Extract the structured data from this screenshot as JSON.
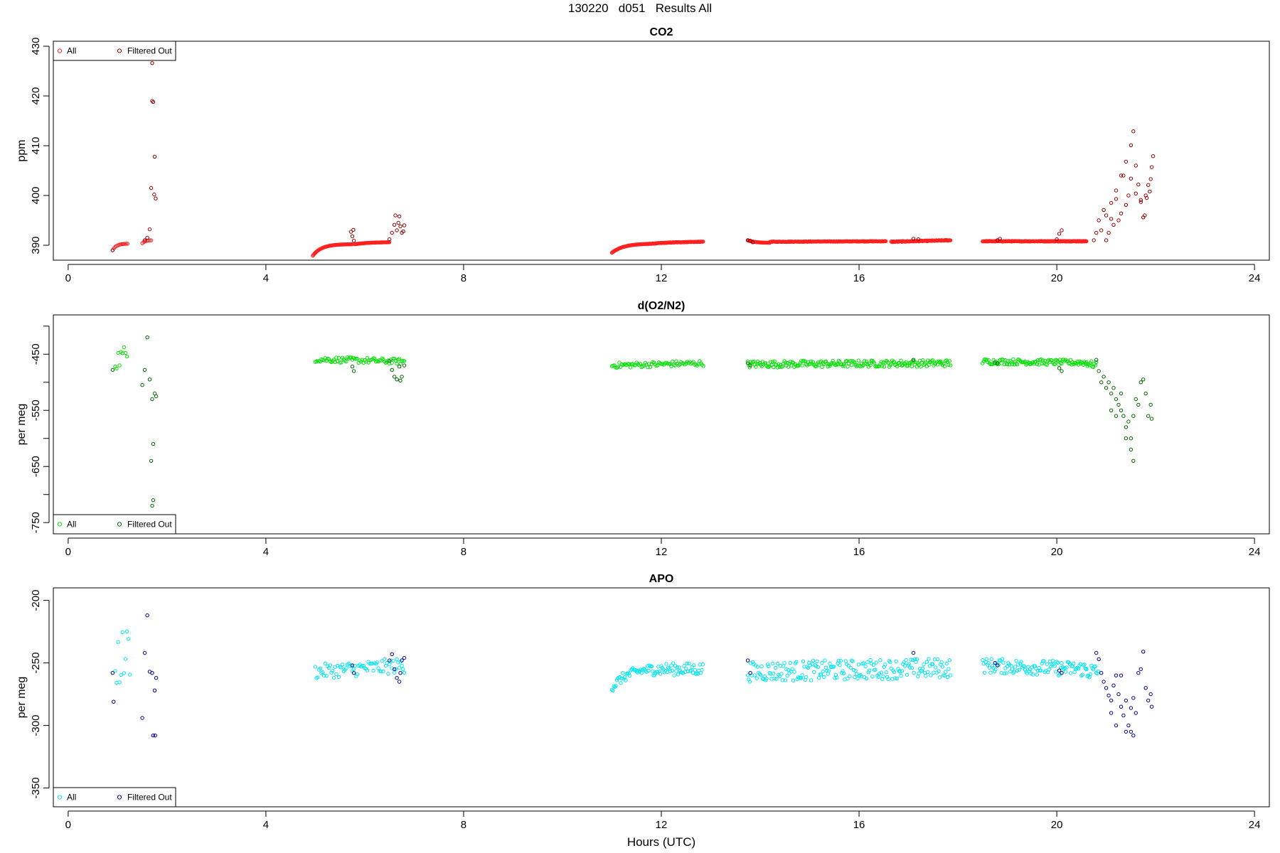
{
  "figure": {
    "title": "130220   d051   Results All",
    "xlabel": "Hours (UTC)"
  },
  "chart_data": [
    {
      "type": "scatter",
      "title": "CO2",
      "xlabel": "",
      "ylabel": "ppm",
      "xlim": [
        -0.3,
        24.3
      ],
      "ylim": [
        387,
        431
      ],
      "xticks": [
        0,
        4,
        8,
        12,
        16,
        20,
        24
      ],
      "xtick_labels": [
        "0",
        "4",
        "8",
        "12",
        "16",
        "20",
        "24"
      ],
      "yticks": [
        390,
        400,
        410,
        420,
        430
      ],
      "ytick_labels": [
        "390",
        "400",
        "410",
        "420",
        "430"
      ],
      "legend": {
        "position": "top-left",
        "entries": [
          "All",
          "Filtered Out"
        ]
      },
      "colors": {
        "all": "#ff2020",
        "filtered": "#8b0000"
      },
      "all_points": {
        "segments": [
          {
            "x0": 0.9,
            "x1": 1.2,
            "step": 0.025,
            "shape": "rise",
            "y0": 389.0,
            "y1": 390.3,
            "k": 0.25,
            "noise": 0.0
          },
          {
            "x0": 1.5,
            "x1": 1.7,
            "step": 0.03,
            "shape": "rise",
            "y0": 390.4,
            "y1": 391.0,
            "k": 0.3,
            "noise": 0.0
          },
          {
            "x0": 4.95,
            "x1": 5.75,
            "step": 0.012,
            "shape": "rise",
            "y0": 387.9,
            "y1": 390.2,
            "k": 0.22,
            "noise": 0.0
          },
          {
            "x0": 5.8,
            "x1": 6.5,
            "step": 0.012,
            "shape": "rise",
            "y0": 390.2,
            "y1": 390.6,
            "k": 0.4,
            "noise": 0.0
          },
          {
            "x0": 11.0,
            "x1": 11.8,
            "step": 0.012,
            "shape": "rise",
            "y0": 388.5,
            "y1": 390.3,
            "k": 0.3,
            "noise": 0.0
          },
          {
            "x0": 11.8,
            "x1": 12.85,
            "step": 0.012,
            "shape": "rise",
            "y0": 390.3,
            "y1": 390.7,
            "k": 0.5,
            "noise": 0.05
          },
          {
            "x0": 13.75,
            "x1": 14.2,
            "step": 0.012,
            "shape": "fall",
            "y0": 391.0,
            "y1": 390.5,
            "k": 0.3,
            "noise": 0.0
          },
          {
            "x0": 14.2,
            "x1": 16.55,
            "step": 0.012,
            "shape": "flat",
            "y0": 390.7,
            "y1": 390.8,
            "k": 0.5,
            "noise": 0.05
          },
          {
            "x0": 16.65,
            "x1": 17.85,
            "step": 0.012,
            "shape": "flat",
            "y0": 390.7,
            "y1": 391.0,
            "k": 0.5,
            "noise": 0.08
          },
          {
            "x0": 18.5,
            "x1": 20.6,
            "step": 0.012,
            "shape": "flat",
            "y0": 390.8,
            "y1": 390.8,
            "k": 0.5,
            "noise": 0.06
          },
          {
            "x0": 20.0,
            "x1": 20.6,
            "step": 0.012,
            "shape": "flat",
            "y0": 390.8,
            "y1": 390.8,
            "k": 0.5,
            "noise": 0.05
          }
        ]
      },
      "filtered_points": [
        [
          0.9,
          389.0
        ],
        [
          1.7,
          426.6
        ],
        [
          1.7,
          419.0
        ],
        [
          1.72,
          418.8
        ],
        [
          1.75,
          407.8
        ],
        [
          1.68,
          401.5
        ],
        [
          1.74,
          400.2
        ],
        [
          1.77,
          399.4
        ],
        [
          1.65,
          393.2
        ],
        [
          1.6,
          391.5
        ],
        [
          1.55,
          391.0
        ],
        [
          5.75,
          391.8
        ],
        [
          5.72,
          392.7
        ],
        [
          5.77,
          393.1
        ],
        [
          5.78,
          390.9
        ],
        [
          6.5,
          391.2
        ],
        [
          6.55,
          392.5
        ],
        [
          6.6,
          394.1
        ],
        [
          6.62,
          396.0
        ],
        [
          6.65,
          393.0
        ],
        [
          6.68,
          394.5
        ],
        [
          6.7,
          395.8
        ],
        [
          6.72,
          393.8
        ],
        [
          6.75,
          392.5
        ],
        [
          6.78,
          392.8
        ],
        [
          6.8,
          394.0
        ],
        [
          13.75,
          391.0
        ],
        [
          13.8,
          390.9
        ],
        [
          13.85,
          390.6
        ],
        [
          17.1,
          391.3
        ],
        [
          17.2,
          391.2
        ],
        [
          18.8,
          391.0
        ],
        [
          18.85,
          391.3
        ],
        [
          20.0,
          391.2
        ],
        [
          20.05,
          392.3
        ],
        [
          20.1,
          393.0
        ],
        [
          20.75,
          391.0
        ],
        [
          20.8,
          392.5
        ],
        [
          20.85,
          395.0
        ],
        [
          20.9,
          393.0
        ],
        [
          20.95,
          397.1
        ],
        [
          21.0,
          391.0
        ],
        [
          21.05,
          392.5
        ],
        [
          21.1,
          398.5
        ],
        [
          21.15,
          394.1
        ],
        [
          21.2,
          399.3
        ],
        [
          21.25,
          395.0
        ],
        [
          21.3,
          404.0
        ],
        [
          21.35,
          404.0
        ],
        [
          21.4,
          406.8
        ],
        [
          21.45,
          400.0
        ],
        [
          21.5,
          410.1
        ],
        [
          21.55,
          412.9
        ],
        [
          21.6,
          406.0
        ],
        [
          21.65,
          402.2
        ],
        [
          21.7,
          398.7
        ],
        [
          21.75,
          395.6
        ],
        [
          21.8,
          400.0
        ],
        [
          21.85,
          402.1
        ],
        [
          21.9,
          403.3
        ],
        [
          21.92,
          405.7
        ],
        [
          21.95,
          407.9
        ],
        [
          21.3,
          396.4
        ],
        [
          21.4,
          398.1
        ],
        [
          21.5,
          403.4
        ],
        [
          21.6,
          400.4
        ],
        [
          21.7,
          399.1
        ],
        [
          21.78,
          396.0
        ],
        [
          21.82,
          399.5
        ],
        [
          21.88,
          400.8
        ],
        [
          21.1,
          395.3
        ],
        [
          21.2,
          401.0
        ],
        [
          21.0,
          396.0
        ]
      ]
    },
    {
      "type": "scatter",
      "title": "d(O2/N2)",
      "xlabel": "",
      "ylabel": "per meg",
      "xlim": [
        -0.3,
        24.3
      ],
      "ylim": [
        -770,
        -380
      ],
      "xticks": [
        0,
        4,
        8,
        12,
        16,
        20,
        24
      ],
      "xtick_labels": [
        "0",
        "4",
        "8",
        "12",
        "16",
        "20",
        "24"
      ],
      "yticks": [
        -750,
        -700,
        -650,
        -600,
        -550,
        -500,
        -450,
        -400
      ],
      "ytick_labels": [
        "-750",
        "",
        "-650",
        "",
        "-550",
        "",
        "-450",
        ""
      ],
      "legend": {
        "position": "bottom-left",
        "entries": [
          "All",
          "Filtered Out"
        ]
      },
      "colors": {
        "all": "#00e000",
        "filtered": "#006400"
      },
      "all_points": {
        "segments": [
          {
            "x0": 0.95,
            "x1": 1.2,
            "step": 0.03,
            "shape": "flat",
            "y0": -460,
            "y1": -450,
            "k": 0.5,
            "noise": 18
          },
          {
            "x0": 5.0,
            "x1": 6.8,
            "step": 0.025,
            "shape": "flat",
            "y0": -459,
            "y1": -463,
            "k": 0.5,
            "noise": 5
          },
          {
            "x0": 11.0,
            "x1": 12.85,
            "step": 0.025,
            "shape": "flat",
            "y0": -470,
            "y1": -466,
            "k": 0.5,
            "noise": 5
          },
          {
            "x0": 13.75,
            "x1": 17.85,
            "step": 0.02,
            "shape": "flat",
            "y0": -468,
            "y1": -466,
            "k": 0.5,
            "noise": 6
          },
          {
            "x0": 18.5,
            "x1": 20.6,
            "step": 0.02,
            "shape": "flat",
            "y0": -463,
            "y1": -465,
            "k": 0.5,
            "noise": 5
          },
          {
            "x0": 20.6,
            "x1": 20.8,
            "step": 0.02,
            "shape": "flat",
            "y0": -466,
            "y1": -470,
            "k": 0.5,
            "noise": 6
          }
        ]
      },
      "filtered_points": [
        [
          0.9,
          -478
        ],
        [
          1.5,
          -505
        ],
        [
          1.6,
          -420
        ],
        [
          1.55,
          -478
        ],
        [
          1.65,
          -495
        ],
        [
          1.7,
          -530
        ],
        [
          1.75,
          -520
        ],
        [
          1.78,
          -525
        ],
        [
          1.72,
          -610
        ],
        [
          1.68,
          -640
        ],
        [
          1.7,
          -720
        ],
        [
          1.72,
          -710
        ],
        [
          5.75,
          -472
        ],
        [
          5.78,
          -480
        ],
        [
          6.5,
          -462
        ],
        [
          6.55,
          -478
        ],
        [
          6.6,
          -490
        ],
        [
          6.65,
          -495
        ],
        [
          6.7,
          -472
        ],
        [
          6.72,
          -497
        ],
        [
          6.75,
          -490
        ],
        [
          6.8,
          -470
        ],
        [
          13.75,
          -466
        ],
        [
          13.8,
          -470
        ],
        [
          17.1,
          -460
        ],
        [
          18.75,
          -465
        ],
        [
          18.8,
          -466
        ],
        [
          20.05,
          -475
        ],
        [
          20.1,
          -480
        ],
        [
          20.8,
          -460
        ],
        [
          20.85,
          -480
        ],
        [
          20.9,
          -500
        ],
        [
          20.95,
          -490
        ],
        [
          21.0,
          -510
        ],
        [
          21.05,
          -500
        ],
        [
          21.1,
          -520
        ],
        [
          21.15,
          -510
        ],
        [
          21.2,
          -530
        ],
        [
          21.25,
          -540
        ],
        [
          21.3,
          -550
        ],
        [
          21.35,
          -560
        ],
        [
          21.4,
          -580
        ],
        [
          21.45,
          -570
        ],
        [
          21.5,
          -600
        ],
        [
          21.55,
          -560
        ],
        [
          21.6,
          -530
        ],
        [
          21.65,
          -540
        ],
        [
          21.7,
          -500
        ],
        [
          21.75,
          -495
        ],
        [
          21.8,
          -520
        ],
        [
          21.85,
          -560
        ],
        [
          21.9,
          -540
        ],
        [
          21.92,
          -565
        ],
        [
          21.3,
          -520
        ],
        [
          21.4,
          -600
        ],
        [
          21.5,
          -620
        ],
        [
          21.55,
          -640
        ],
        [
          21.2,
          -560
        ],
        [
          21.1,
          -550
        ]
      ]
    },
    {
      "type": "scatter",
      "title": "APO",
      "xlabel": "Hours (UTC)",
      "ylabel": "per meg",
      "xlim": [
        -0.3,
        24.3
      ],
      "ylim": [
        -365,
        -190
      ],
      "xticks": [
        0,
        4,
        8,
        12,
        16,
        20,
        24
      ],
      "xtick_labels": [
        "0",
        "4",
        "8",
        "12",
        "16",
        "20",
        "24"
      ],
      "yticks": [
        -350,
        -300,
        -250,
        -200
      ],
      "ytick_labels": [
        "-350",
        "-300",
        "-250",
        "-200"
      ],
      "legend": {
        "position": "bottom-left",
        "entries": [
          "All",
          "Filtered Out"
        ]
      },
      "colors": {
        "all": "#00e5ee",
        "filtered": "#00008b"
      },
      "all_points": {
        "segments": [
          {
            "x0": 0.95,
            "x1": 1.25,
            "step": 0.03,
            "shape": "flat",
            "y0": -250,
            "y1": -240,
            "k": 0.5,
            "noise": 22
          },
          {
            "x0": 5.0,
            "x1": 6.8,
            "step": 0.025,
            "shape": "flat",
            "y0": -257,
            "y1": -252,
            "k": 0.5,
            "noise": 6
          },
          {
            "x0": 11.0,
            "x1": 11.8,
            "step": 0.02,
            "shape": "rise",
            "y0": -270,
            "y1": -255,
            "k": 0.4,
            "noise": 4
          },
          {
            "x0": 11.8,
            "x1": 12.85,
            "step": 0.02,
            "shape": "flat",
            "y0": -255,
            "y1": -255,
            "k": 0.5,
            "noise": 5
          },
          {
            "x0": 13.75,
            "x1": 17.85,
            "step": 0.02,
            "shape": "flat",
            "y0": -257,
            "y1": -254,
            "k": 0.5,
            "noise": 8
          },
          {
            "x0": 18.5,
            "x1": 20.6,
            "step": 0.02,
            "shape": "flat",
            "y0": -252,
            "y1": -255,
            "k": 0.5,
            "noise": 6
          },
          {
            "x0": 20.6,
            "x1": 20.85,
            "step": 0.02,
            "shape": "flat",
            "y0": -256,
            "y1": -258,
            "k": 0.5,
            "noise": 7
          }
        ]
      },
      "filtered_points": [
        [
          0.9,
          -258
        ],
        [
          0.92,
          -281
        ],
        [
          1.55,
          -242
        ],
        [
          1.6,
          -212
        ],
        [
          1.65,
          -257
        ],
        [
          1.7,
          -258
        ],
        [
          1.75,
          -272
        ],
        [
          1.78,
          -262
        ],
        [
          1.72,
          -308
        ],
        [
          1.76,
          -308
        ],
        [
          1.5,
          -294
        ],
        [
          5.75,
          -252
        ],
        [
          5.78,
          -258
        ],
        [
          6.5,
          -248
        ],
        [
          6.55,
          -243
        ],
        [
          6.6,
          -255
        ],
        [
          6.65,
          -262
        ],
        [
          6.7,
          -265
        ],
        [
          6.72,
          -258
        ],
        [
          6.75,
          -248
        ],
        [
          6.8,
          -246
        ],
        [
          13.75,
          -248
        ],
        [
          13.8,
          -258
        ],
        [
          17.1,
          -242
        ],
        [
          18.75,
          -250
        ],
        [
          18.8,
          -252
        ],
        [
          20.05,
          -256
        ],
        [
          20.1,
          -258
        ],
        [
          20.8,
          -242
        ],
        [
          20.85,
          -247
        ],
        [
          20.9,
          -258
        ],
        [
          20.95,
          -265
        ],
        [
          21.0,
          -270
        ],
        [
          21.05,
          -276
        ],
        [
          21.1,
          -280
        ],
        [
          21.15,
          -268
        ],
        [
          21.2,
          -260
        ],
        [
          21.25,
          -275
        ],
        [
          21.3,
          -285
        ],
        [
          21.35,
          -292
        ],
        [
          21.4,
          -305
        ],
        [
          21.45,
          -300
        ],
        [
          21.5,
          -286
        ],
        [
          21.55,
          -278
        ],
        [
          21.6,
          -290
        ],
        [
          21.65,
          -258
        ],
        [
          21.7,
          -255
        ],
        [
          21.75,
          -241
        ],
        [
          21.8,
          -270
        ],
        [
          21.85,
          -280
        ],
        [
          21.9,
          -275
        ],
        [
          21.92,
          -285
        ],
        [
          21.3,
          -260
        ],
        [
          21.4,
          -280
        ],
        [
          21.5,
          -305
        ],
        [
          21.55,
          -308
        ],
        [
          21.2,
          -300
        ],
        [
          21.1,
          -290
        ]
      ]
    }
  ]
}
